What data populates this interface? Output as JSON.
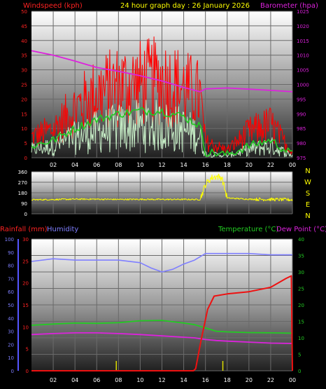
{
  "header": {
    "windspeed_label": "Windspeed (kph)",
    "title": "24 hour graph day : 26 January 2026",
    "barometer_label": "Barometer (hpa)"
  },
  "mid_header": {
    "rainfall_label": "Rainfall (mm)",
    "humidity_label": "Humidity",
    "temperature_label": "Temperature (°C)",
    "dewpoint_label": "Dew Point (°C)"
  },
  "compass": [
    "N",
    "W",
    "S",
    "E",
    "N"
  ],
  "x_ticks": [
    "02",
    "04",
    "06",
    "08",
    "10",
    "12",
    "14",
    "16",
    "18",
    "20",
    "22",
    "00"
  ],
  "colors": {
    "wind": "#ff0000",
    "wind_avg": "#22cc22",
    "gust_light": "#c8f0c8",
    "barometer": "#dd22dd",
    "direction": "#ffff00",
    "humidity": "#7f7fff",
    "temperature": "#22cc22",
    "dewpoint": "#dd22dd",
    "rain": "#ee1111",
    "rain_ticks": "#dddd00",
    "left_axis_text": "#ff2222",
    "humidity_axis_text": "#7f7fff",
    "temp_axis_text": "#22cc22"
  },
  "chart_data": [
    {
      "type": "line",
      "name": "wind_and_barometer",
      "x_unit": "hours",
      "xlim": [
        0,
        24
      ],
      "left_axis": {
        "label": "Windspeed (kph)",
        "ylim": [
          0,
          50
        ],
        "ticks": [
          0,
          5,
          10,
          15,
          20,
          25,
          30,
          35,
          40,
          45,
          50
        ]
      },
      "right_axis": {
        "label": "Barometer (hpa)",
        "ylim": [
          975,
          1025
        ],
        "ticks": [
          975,
          980,
          985,
          990,
          995,
          1000,
          1005,
          1010,
          1015,
          1020,
          1025
        ]
      },
      "series": [
        {
          "name": "Barometer",
          "axis": "right",
          "x": [
            0,
            2,
            4,
            6,
            8,
            10,
            12,
            14,
            15.5,
            16,
            18,
            20,
            22,
            24
          ],
          "values": [
            1011.5,
            1010,
            1008,
            1005.8,
            1004.5,
            1003,
            1001.2,
            999,
            997.5,
            998.5,
            998.8,
            998.4,
            998,
            997.5
          ]
        }
      ],
      "wind_gust_range": {
        "x": [
          0,
          2,
          4,
          6,
          8,
          10,
          12,
          14,
          15.5,
          16,
          18,
          20,
          22,
          24
        ],
        "values": [
          8,
          11,
          19,
          25,
          28,
          29,
          30,
          27,
          24,
          6,
          3,
          10,
          13,
          2
        ]
      },
      "wind_avg_trace": {
        "x": [
          0,
          2,
          4,
          6,
          8,
          10,
          12,
          14,
          15.5,
          16,
          18,
          20,
          22,
          24
        ],
        "values": [
          4,
          6,
          10,
          13,
          15,
          16,
          16,
          14,
          11,
          2,
          1,
          4,
          6,
          1
        ]
      }
    },
    {
      "type": "line",
      "name": "wind_direction",
      "x_unit": "hours",
      "xlim": [
        0,
        24
      ],
      "ylim": [
        0,
        360
      ],
      "ticks": [
        0,
        90,
        180,
        270,
        360
      ],
      "series": [
        {
          "name": "Direction",
          "x": [
            0,
            2,
            4,
            6,
            8,
            10,
            12,
            14,
            15.5,
            16,
            16.5,
            17,
            17.5,
            18,
            20,
            22,
            24
          ],
          "values": [
            120,
            122,
            125,
            125,
            123,
            124,
            123,
            123,
            122,
            250,
            305,
            320,
            310,
            135,
            125,
            123,
            120
          ]
        }
      ]
    },
    {
      "type": "line",
      "name": "rain_humidity_temperature",
      "x_unit": "hours",
      "xlim": [
        0,
        24
      ],
      "left_axis_rain": {
        "label": "Rainfall (mm)",
        "ylim": [
          0,
          30
        ],
        "ticks": [
          0,
          5,
          10,
          15,
          20,
          25,
          30
        ]
      },
      "left_axis_humidity": {
        "label": "Humidity",
        "ylim": [
          0,
          100
        ],
        "ticks": [
          0,
          10,
          20,
          30,
          40,
          50,
          60,
          70,
          80,
          90,
          100
        ]
      },
      "right_axis": {
        "label": "Temperature (°C)",
        "ylim": [
          0,
          40
        ],
        "ticks": [
          0,
          5,
          10,
          15,
          20,
          25,
          30,
          35,
          40
        ]
      },
      "series": [
        {
          "name": "Humidity",
          "axis": "humidity",
          "x": [
            0,
            2,
            4,
            6,
            8,
            10,
            11,
            12,
            13,
            14,
            15,
            16,
            18,
            20,
            22,
            24
          ],
          "values": [
            83,
            85,
            84,
            84,
            84,
            82,
            78,
            75,
            77,
            81,
            84,
            89,
            89,
            89,
            88,
            88
          ]
        },
        {
          "name": "Temperature (°C)",
          "axis": "right",
          "x": [
            0,
            2,
            4,
            6,
            8,
            10,
            12,
            14,
            15,
            16,
            17,
            18,
            20,
            22,
            24
          ],
          "values": [
            13.8,
            14.2,
            14.5,
            14.4,
            14.6,
            15.2,
            15.3,
            14.5,
            14,
            13,
            12,
            11.8,
            11.6,
            11.5,
            11.4
          ]
        },
        {
          "name": "Dew Point (°C)",
          "axis": "right",
          "x": [
            0,
            2,
            4,
            6,
            8,
            10,
            12,
            14,
            15,
            16,
            17,
            18,
            20,
            22,
            24
          ],
          "values": [
            11,
            11.3,
            11.5,
            11.5,
            11.3,
            11,
            10.6,
            10.2,
            10,
            9.5,
            9.2,
            9,
            8.7,
            8.4,
            8.3
          ]
        },
        {
          "name": "Rainfall (mm)",
          "axis": "rain",
          "x": [
            0,
            14.9,
            15.1,
            15.6,
            16.2,
            16.8,
            18,
            20,
            22,
            23.4,
            23.9,
            24
          ],
          "values": [
            0,
            0,
            0.5,
            7,
            14,
            17,
            17.5,
            18,
            19,
            21,
            21.6,
            0
          ]
        }
      ],
      "rain_event_ticks": [
        7.8,
        17.6
      ]
    }
  ]
}
